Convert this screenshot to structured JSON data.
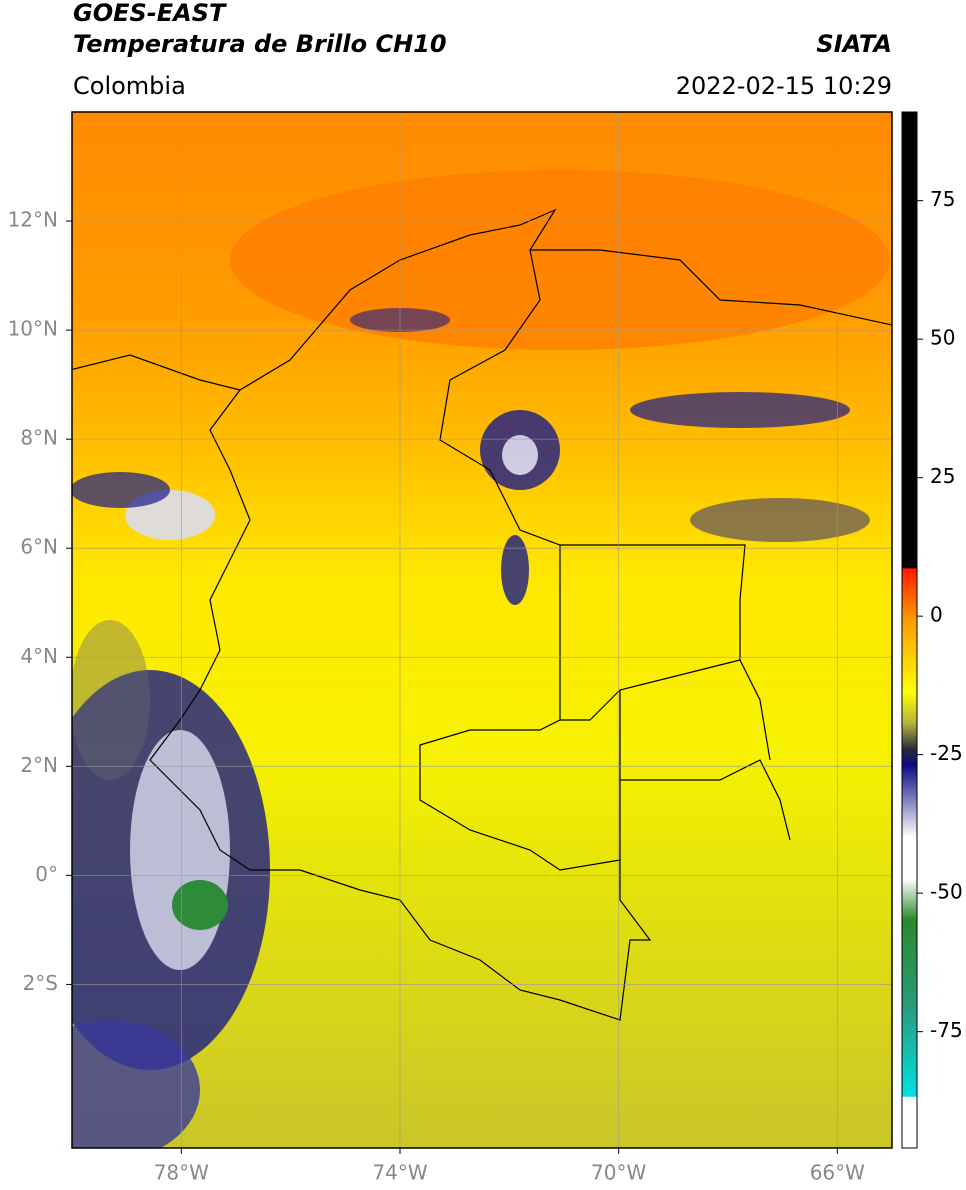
{
  "header": {
    "satellite": "GOES-EAST",
    "product": "Temperatura de Brillo CH10",
    "source": "SIATA",
    "region": "Colombia",
    "datetime": "2022-02-15 10:29"
  },
  "map": {
    "xlim": [
      -80,
      -65
    ],
    "ylim": [
      -5,
      14
    ],
    "xticks": [
      {
        "value": -78,
        "label": "78°W"
      },
      {
        "value": -74,
        "label": "74°W"
      },
      {
        "value": -70,
        "label": "70°W"
      },
      {
        "value": -66,
        "label": "66°W"
      }
    ],
    "yticks": [
      {
        "value": 12,
        "label": "12°N"
      },
      {
        "value": 10,
        "label": "10°N"
      },
      {
        "value": 8,
        "label": "8°N"
      },
      {
        "value": 6,
        "label": "6°N"
      },
      {
        "value": 4,
        "label": "4°N"
      },
      {
        "value": 2,
        "label": "2°N"
      },
      {
        "value": 0,
        "label": "0°"
      },
      {
        "value": -2,
        "label": "2°S"
      }
    ]
  },
  "colorbar": {
    "lim": [
      -96,
      91
    ],
    "ticks": [
      75,
      50,
      25,
      0,
      -25,
      -50,
      -75
    ]
  }
}
